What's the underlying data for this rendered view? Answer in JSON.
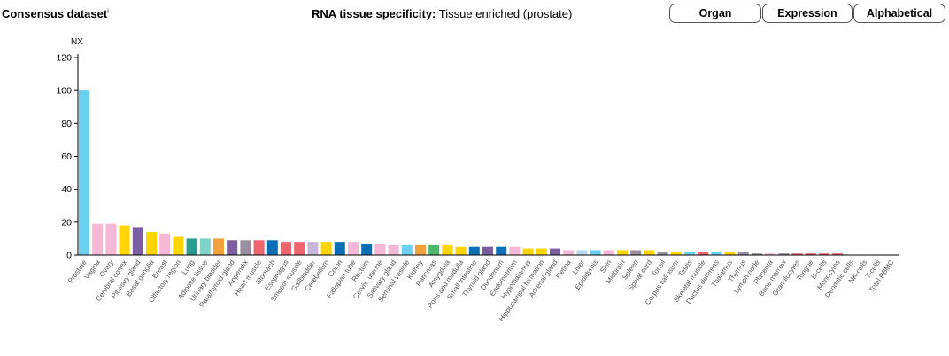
{
  "header": {
    "dataset_label": "Consensus dataset",
    "dataset_superscript": "i",
    "specificity_label": "RNA tissue specificity:",
    "specificity_value": "Tissue enriched (prostate)"
  },
  "sort_buttons": [
    {
      "label": "Organ"
    },
    {
      "label": "Expression"
    },
    {
      "label": "Alphabetical"
    }
  ],
  "chart_data": {
    "type": "bar",
    "ylabel": "NX",
    "ylim": [
      0,
      120
    ],
    "yticks": [
      0,
      20,
      40,
      60,
      80,
      100,
      120
    ],
    "grid": false,
    "categories": [
      "Prostate",
      "Vagina",
      "Ovary",
      "Cerebral cortex",
      "Pituitary gland",
      "Basal ganglia",
      "Breast",
      "Olfactory region",
      "Lung",
      "Adipose tissue",
      "Urinary bladder",
      "Parathyroid gland",
      "Appendix",
      "Heart muscle",
      "Stomach",
      "Esophagus",
      "Smooth muscle",
      "Gallbladder",
      "Cerebellum",
      "Colon",
      "Fallopian tube",
      "Rectum",
      "Cervix, uterine",
      "Salivary gland",
      "Seminal vesicle",
      "Kidney",
      "Pancreas",
      "Amygdala",
      "Pons and medulla",
      "Small intestine",
      "Thyroid gland",
      "Duodenum",
      "Endometrium",
      "Hypothalamus",
      "Hippocampal formation",
      "Adrenal gland",
      "Retina",
      "Liver",
      "Epididymis",
      "Skin",
      "Midbrain",
      "Spleen",
      "Spinal cord",
      "Tonsil",
      "Corpus callosum",
      "Testis",
      "Skeletal muscle",
      "Ductus deferens",
      "Thalamus",
      "Thymus",
      "Lymph node",
      "Placenta",
      "Bone marrow",
      "Granulocytes",
      "Tongue",
      "B-cells",
      "Monocytes",
      "Dendritic cells",
      "NK-cells",
      "T-cells",
      "Total PBMC"
    ],
    "values": [
      100,
      19,
      19,
      18,
      17,
      14,
      13,
      11,
      10,
      10,
      10,
      9,
      9,
      9,
      9,
      8,
      8,
      8,
      8,
      8,
      8,
      7,
      7,
      6,
      6,
      6,
      6,
      6,
      5,
      5,
      5,
      5,
      5,
      4,
      4,
      4,
      3,
      3,
      3,
      3,
      3,
      3,
      3,
      2,
      2,
      2,
      2,
      2,
      2,
      2,
      1,
      1,
      1,
      1,
      1,
      1,
      1,
      0,
      0,
      0,
      0
    ],
    "colors": [
      "#6ad0f2",
      "#f5b8d6",
      "#f5b8d6",
      "#ffd500",
      "#7b5ea1",
      "#ffd500",
      "#f5b8d6",
      "#ffd500",
      "#2a9d8f",
      "#7fd3c7",
      "#f1a23b",
      "#7b5ea1",
      "#9a8fa1",
      "#f0646e",
      "#0b6fb5",
      "#f0646e",
      "#f0646e",
      "#c8b6d8",
      "#ffd500",
      "#0b6fb5",
      "#f5b8d6",
      "#0b6fb5",
      "#f5b8d6",
      "#f5b8d6",
      "#6ad0f2",
      "#f1a23b",
      "#4cb86a",
      "#ffd500",
      "#ffd500",
      "#0b6fb5",
      "#7b5ea1",
      "#0b6fb5",
      "#f5b8d6",
      "#ffd500",
      "#ffd500",
      "#7b5ea1",
      "#f5b8d6",
      "#b9d7ee",
      "#6ad0f2",
      "#f5b8d6",
      "#ffd500",
      "#9a8fa1",
      "#ffd500",
      "#9a8fa1",
      "#ffd500",
      "#6ad0f2",
      "#f0646e",
      "#6ad0f2",
      "#ffd500",
      "#9a8fa1",
      "#9a8fa1",
      "#f5b8d6",
      "#9a8fa1",
      "#f0646e",
      "#f0646e",
      "#f0646e",
      "#f0646e",
      "#f0646e",
      "#f0646e",
      "#f0646e",
      "#f0646e"
    ]
  }
}
